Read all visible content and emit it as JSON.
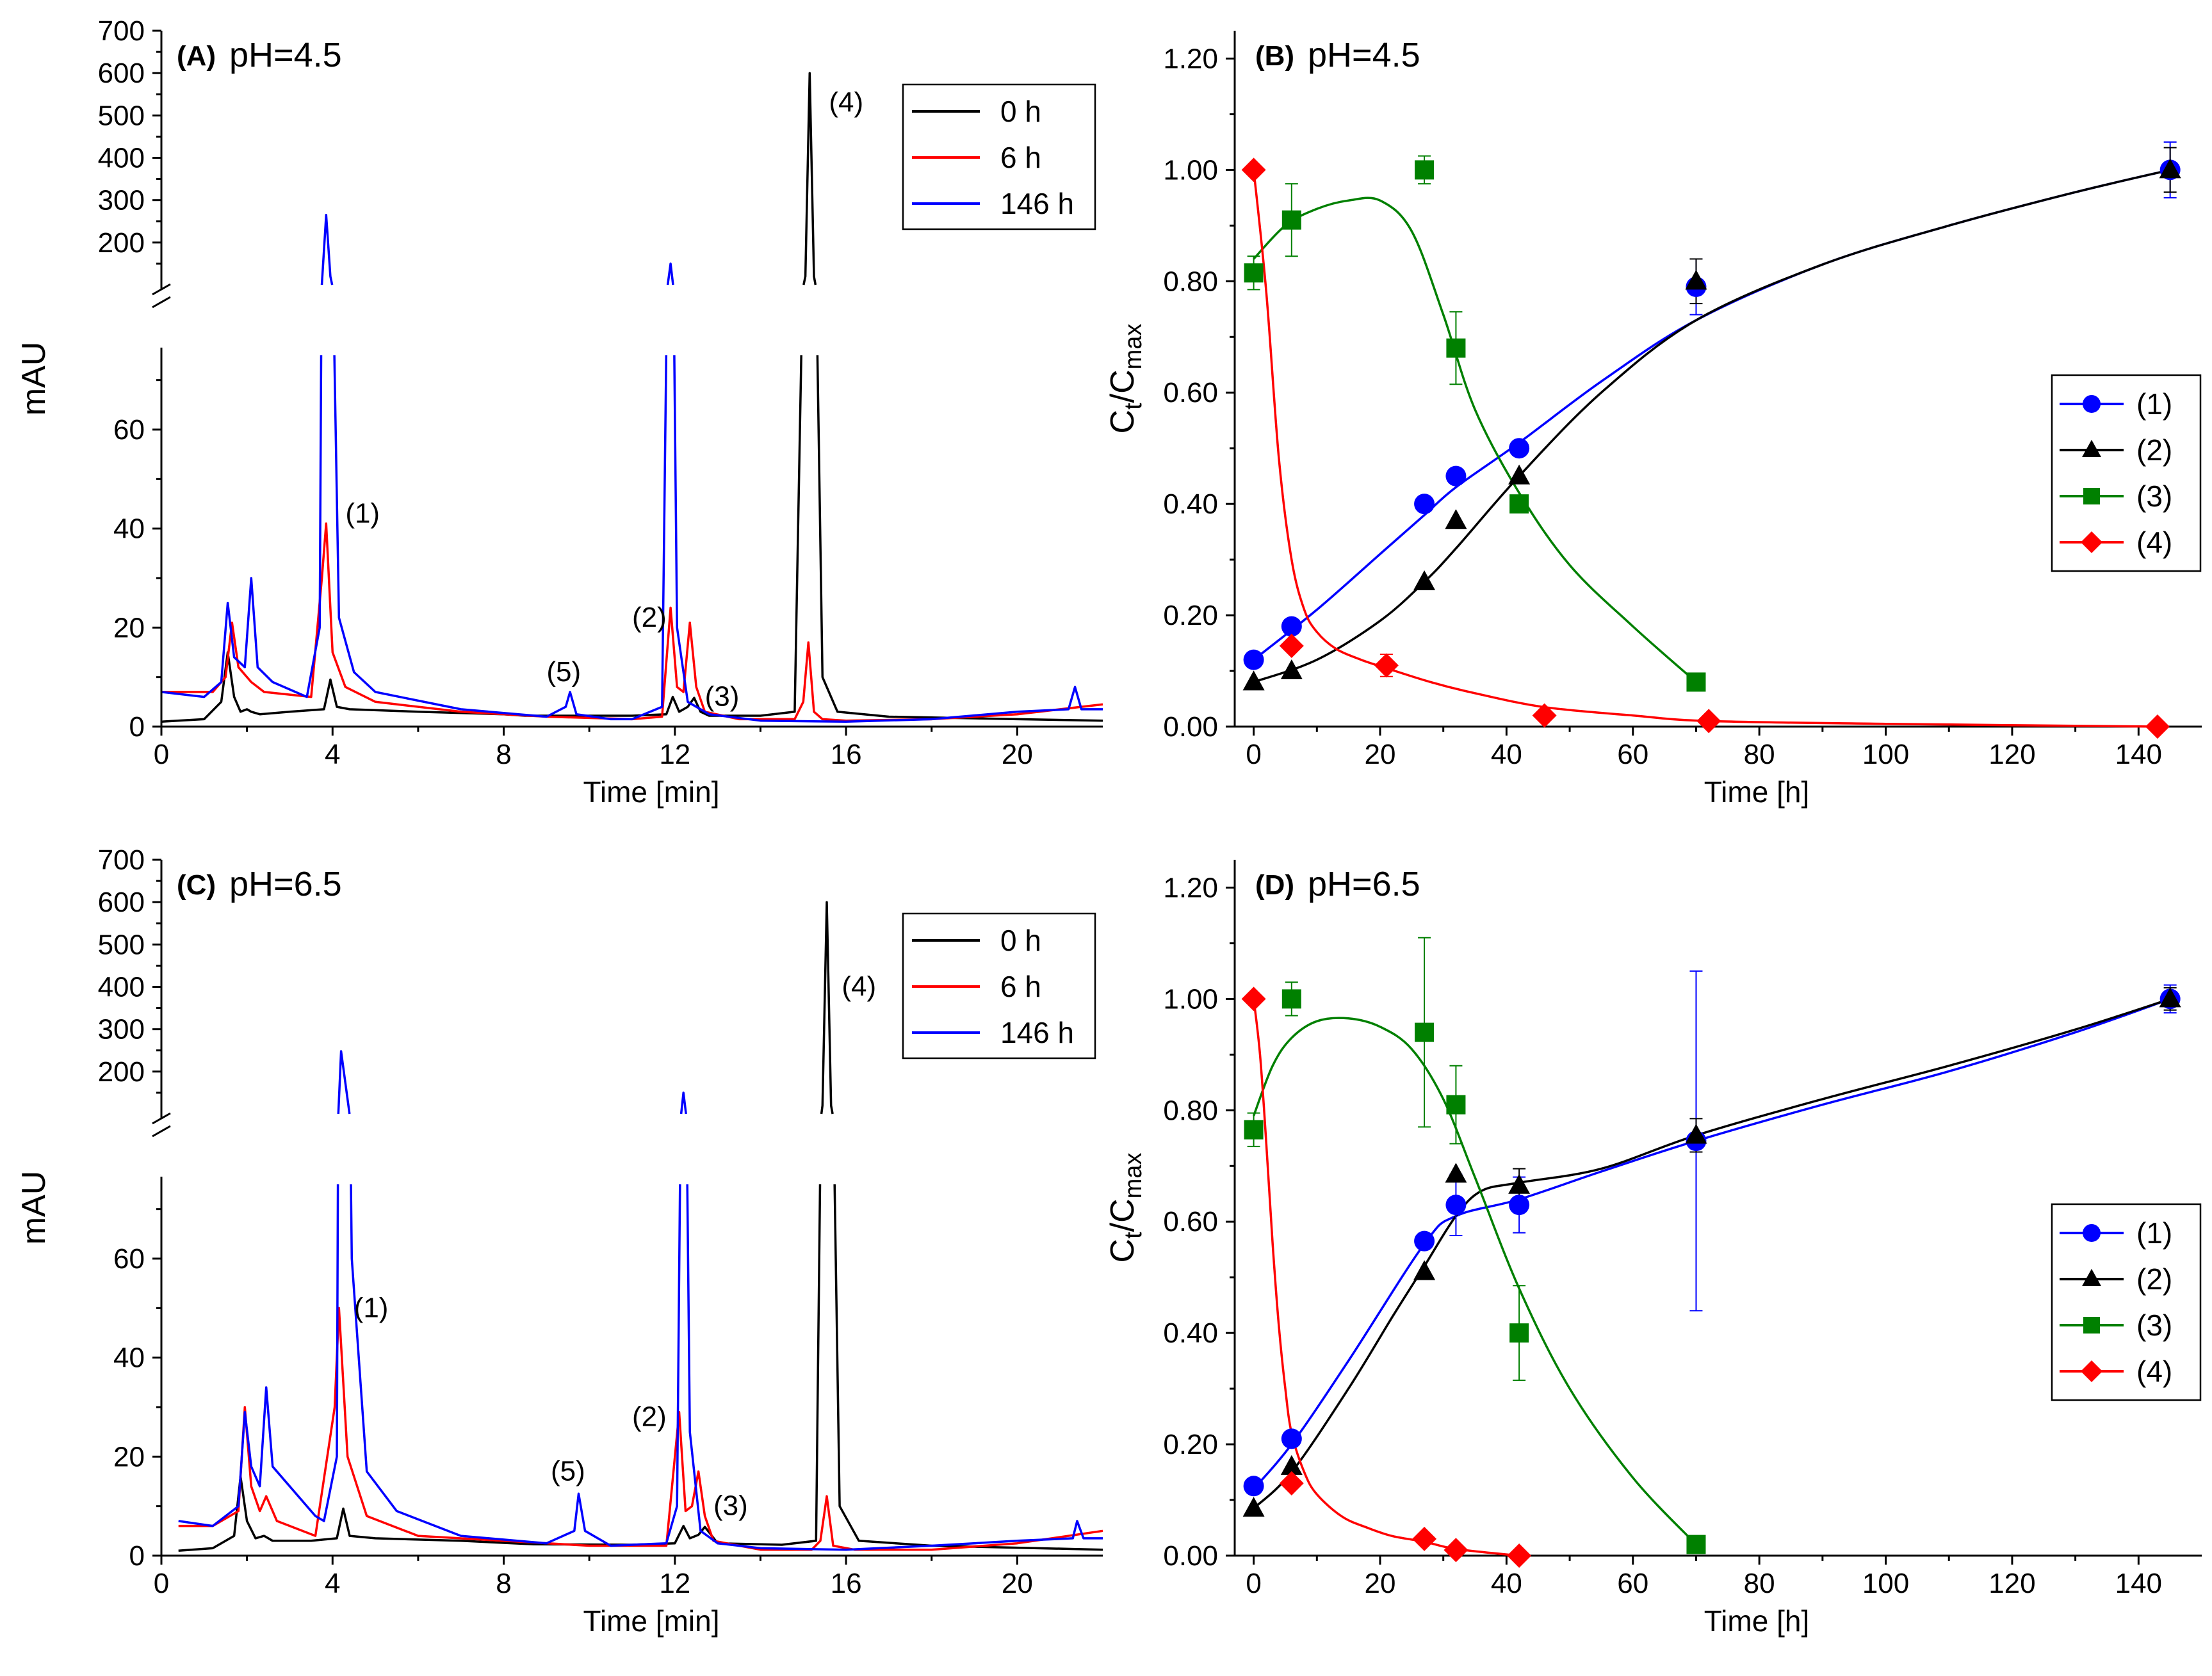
{
  "chart_data": [
    {
      "panel": "A",
      "type": "line",
      "tag": "(A)",
      "subtitle": "pH=4.5",
      "xlabel": "Time [min]",
      "ylabel": "mAU",
      "xlim": [
        0,
        22
      ],
      "xticks": [
        0,
        4,
        8,
        12,
        16,
        20
      ],
      "ylim_lower": [
        0,
        75
      ],
      "yticks_lower": [
        0,
        20,
        40,
        60
      ],
      "ylim_upper": [
        100,
        700
      ],
      "yticks_upper": [
        200,
        300,
        400,
        500,
        600,
        700
      ],
      "legend_position": "top-right",
      "series": [
        {
          "name": "0 h",
          "color": "#000000",
          "x": [
            0,
            1.0,
            1.4,
            1.55,
            1.7,
            1.85,
            2.0,
            2.1,
            2.3,
            3.0,
            3.8,
            3.95,
            4.1,
            4.4,
            6.0,
            8.0,
            8.5,
            11.0,
            11.8,
            11.95,
            12.1,
            12.3,
            12.45,
            12.6,
            12.8,
            14.0,
            14.8,
            15.05,
            15.15,
            15.25,
            15.45,
            15.8,
            17.0,
            20.0,
            22.0
          ],
          "y": [
            1,
            1.5,
            5,
            15,
            6,
            3,
            3.5,
            3,
            2.5,
            3,
            3.5,
            9.5,
            4,
            3.5,
            3,
            2.5,
            2.2,
            2.2,
            2.5,
            6,
            3,
            4,
            5.8,
            3,
            2.2,
            2.2,
            3,
            120,
            600,
            120,
            10,
            3,
            2,
            1.5,
            1.2
          ]
        },
        {
          "name": "6 h",
          "color": "#ff0000",
          "x": [
            0,
            1.2,
            1.5,
            1.65,
            1.8,
            2.1,
            2.4,
            3.5,
            3.75,
            3.85,
            4.0,
            4.3,
            5.0,
            7.0,
            9.0,
            11.0,
            11.7,
            11.9,
            12.05,
            12.2,
            12.35,
            12.5,
            12.7,
            13.5,
            14.8,
            15.0,
            15.12,
            15.25,
            15.45,
            16.0,
            18.0,
            20.0,
            22.0
          ],
          "y": [
            7,
            7,
            10,
            21,
            12,
            9,
            7,
            6,
            30,
            41,
            15,
            8,
            5,
            3,
            2,
            1.5,
            2,
            24,
            8,
            7,
            21,
            8,
            3,
            1.5,
            1.5,
            5,
            17,
            3,
            1.5,
            1.2,
            1.5,
            2.5,
            4.5
          ]
        },
        {
          "name": "146 h",
          "color": "#0000ff",
          "x": [
            0,
            1.0,
            1.4,
            1.55,
            1.7,
            1.95,
            2.1,
            2.25,
            2.6,
            3.4,
            3.7,
            3.85,
            3.95,
            4.15,
            4.5,
            5.0,
            7.0,
            9.0,
            9.45,
            9.55,
            9.7,
            10.5,
            11.0,
            11.7,
            11.9,
            12.05,
            12.3,
            12.8,
            14.0,
            16.0,
            18.0,
            20.0,
            21.2,
            21.35,
            21.5,
            22.0
          ],
          "y": [
            7,
            6,
            9,
            25,
            14,
            12,
            30,
            12,
            9,
            6,
            20,
            265,
            120,
            22,
            11,
            7,
            3.5,
            2,
            4,
            7,
            2.5,
            1.5,
            1.5,
            4,
            150,
            20,
            5,
            2.5,
            1.2,
            1.0,
            1.5,
            3,
            3.5,
            8,
            3.5,
            3.5
          ]
        }
      ],
      "annotations": [
        {
          "text": "(1)",
          "x": 4.3,
          "y": 43
        },
        {
          "text": "(2)",
          "x": 11.0,
          "y": 22
        },
        {
          "text": "(3)",
          "x": 12.7,
          "y": 6
        },
        {
          "text": "(4)",
          "x": 15.6,
          "y": 530
        },
        {
          "text": "(5)",
          "x": 9.0,
          "y": 11
        }
      ]
    },
    {
      "panel": "B",
      "type": "scatter",
      "tag": "(B)",
      "subtitle": "pH=4.5",
      "xlabel": "Time [h]",
      "ylabel": "Ct/Cmax",
      "xlim": [
        -3,
        150
      ],
      "xticks": [
        0,
        20,
        40,
        60,
        80,
        100,
        120,
        140
      ],
      "ylim": [
        0,
        1.25
      ],
      "yticks": [
        0.0,
        0.2,
        0.4,
        0.6,
        0.8,
        1.0,
        1.2
      ],
      "legend_position": "right",
      "series": [
        {
          "name": "(1)",
          "color": "#0000ff",
          "marker": "circle",
          "x": [
            0,
            6,
            27,
            32,
            42,
            70,
            145
          ],
          "y": [
            0.12,
            0.18,
            0.4,
            0.45,
            0.5,
            0.79,
            1.0
          ],
          "err": [
            0,
            0,
            0,
            0,
            0,
            0.05,
            0.05
          ],
          "fit_x": [
            0,
            10,
            20,
            27,
            32,
            42,
            55,
            70,
            90,
            110,
            130,
            145
          ],
          "fit_y": [
            0.12,
            0.21,
            0.31,
            0.38,
            0.43,
            0.51,
            0.62,
            0.73,
            0.83,
            0.9,
            0.96,
            1.0
          ]
        },
        {
          "name": "(2)",
          "color": "#000000",
          "marker": "triangle",
          "x": [
            0,
            6,
            27,
            32,
            42,
            70,
            145
          ],
          "y": [
            0.08,
            0.1,
            0.26,
            0.37,
            0.45,
            0.8,
            1.0
          ],
          "err": [
            0,
            0,
            0,
            0,
            0,
            0.04,
            0.04
          ],
          "fit_x": [
            0,
            10,
            20,
            27,
            32,
            42,
            55,
            70,
            90,
            110,
            130,
            145
          ],
          "fit_y": [
            0.08,
            0.12,
            0.19,
            0.26,
            0.32,
            0.45,
            0.6,
            0.73,
            0.83,
            0.9,
            0.96,
            1.0
          ]
        },
        {
          "name": "(3)",
          "color": "#008000",
          "marker": "square",
          "x": [
            0,
            6,
            27,
            32,
            42,
            70
          ],
          "y": [
            0.815,
            0.91,
            1.0,
            0.68,
            0.4,
            0.08
          ],
          "err": [
            0.03,
            0.065,
            0.025,
            0.065,
            0,
            0
          ],
          "fit_x": [
            0,
            5,
            10,
            15,
            20,
            25,
            30,
            35,
            42,
            50,
            60,
            70
          ],
          "fit_y": [
            0.84,
            0.9,
            0.93,
            0.945,
            0.945,
            0.89,
            0.74,
            0.57,
            0.42,
            0.29,
            0.18,
            0.08
          ]
        },
        {
          "name": "(4)",
          "color": "#ff0000",
          "marker": "diamond",
          "x": [
            0,
            6,
            21,
            46,
            72,
            143
          ],
          "y": [
            1.0,
            0.145,
            0.11,
            0.02,
            0.01,
            0.0
          ],
          "err": [
            0,
            0,
            0.02,
            0,
            0,
            0
          ],
          "fit_x": [
            0,
            2,
            4,
            6,
            8,
            10,
            13,
            17,
            21,
            28,
            35,
            46,
            60,
            72,
            100,
            143
          ],
          "fit_y": [
            1.0,
            0.78,
            0.48,
            0.3,
            0.21,
            0.17,
            0.14,
            0.12,
            0.105,
            0.08,
            0.06,
            0.035,
            0.02,
            0.01,
            0.005,
            0.0
          ]
        }
      ]
    },
    {
      "panel": "C",
      "type": "line",
      "tag": "(C)",
      "subtitle": "pH=6.5",
      "xlabel": "Time [min]",
      "ylabel": "mAU",
      "xlim": [
        0,
        22
      ],
      "xticks": [
        0,
        4,
        8,
        12,
        16,
        20
      ],
      "ylim_lower": [
        0,
        75
      ],
      "yticks_lower": [
        0,
        20,
        40,
        60
      ],
      "ylim_upper": [
        100,
        700
      ],
      "yticks_upper": [
        200,
        300,
        400,
        500,
        600,
        700
      ],
      "legend_position": "top-right",
      "series": [
        {
          "name": "0 h",
          "color": "#000000",
          "x": [
            0.4,
            1.2,
            1.7,
            1.85,
            2.0,
            2.2,
            2.4,
            2.6,
            3.5,
            4.1,
            4.25,
            4.4,
            5.0,
            7.0,
            8.7,
            11.0,
            12.0,
            12.2,
            12.35,
            12.55,
            12.7,
            13.0,
            14.5,
            15.3,
            15.45,
            15.55,
            15.65,
            15.85,
            16.3,
            18.0,
            22.0
          ],
          "y": [
            1,
            1.5,
            4,
            16,
            7,
            3.5,
            4,
            3,
            3,
            3.5,
            9.5,
            4,
            3.5,
            3,
            2.3,
            2.2,
            2.5,
            6,
            3.5,
            4.2,
            5.8,
            2.5,
            2.2,
            3,
            120,
            600,
            120,
            10,
            3,
            2,
            1.2
          ]
        },
        {
          "name": "6 h",
          "color": "#ff0000",
          "x": [
            0.4,
            1.2,
            1.8,
            1.95,
            2.1,
            2.3,
            2.45,
            2.7,
            3.6,
            4.05,
            4.15,
            4.35,
            4.8,
            6.0,
            8.0,
            10.0,
            11.8,
            12.1,
            12.25,
            12.4,
            12.55,
            12.7,
            12.9,
            14.0,
            15.2,
            15.4,
            15.55,
            15.7,
            16.2,
            18.0,
            20.0,
            22.0
          ],
          "y": [
            6,
            6,
            9,
            30,
            14,
            9,
            12,
            7,
            4,
            30,
            50,
            20,
            8,
            4,
            3,
            2,
            2,
            29,
            9,
            10,
            17,
            8,
            3,
            1.2,
            1.2,
            3,
            12,
            2,
            1.2,
            1.2,
            2.5,
            5
          ]
        },
        {
          "name": "146 h",
          "color": "#0000ff",
          "x": [
            0.4,
            1.2,
            1.8,
            1.95,
            2.1,
            2.3,
            2.45,
            2.6,
            3.6,
            3.8,
            4.1,
            4.2,
            4.45,
            4.8,
            5.5,
            7.0,
            9.0,
            9.65,
            9.75,
            9.9,
            10.5,
            11.8,
            12.05,
            12.2,
            12.35,
            12.6,
            13.0,
            14.0,
            16.0,
            18.0,
            20.0,
            21.3,
            21.4,
            21.55,
            22.0
          ],
          "y": [
            7,
            6,
            10,
            29,
            18,
            14,
            34,
            18,
            8,
            7,
            20,
            248,
            60,
            17,
            9,
            4,
            2.5,
            5,
            12.5,
            5,
            2,
            2.5,
            10,
            150,
            25,
            5,
            2.5,
            1.5,
            1.2,
            2,
            3,
            3.5,
            7,
            3.5,
            3.5
          ]
        }
      ],
      "annotations": [
        {
          "text": "(1)",
          "x": 4.5,
          "y": 50
        },
        {
          "text": "(2)",
          "x": 11.0,
          "y": 28
        },
        {
          "text": "(3)",
          "x": 12.9,
          "y": 10
        },
        {
          "text": "(4)",
          "x": 15.9,
          "y": 400
        },
        {
          "text": "(5)",
          "x": 9.1,
          "y": 17
        }
      ]
    },
    {
      "panel": "D",
      "type": "scatter",
      "tag": "(D)",
      "subtitle": "pH=6.5",
      "xlabel": "Time [h]",
      "ylabel": "Ct/Cmax",
      "xlim": [
        -3,
        150
      ],
      "xticks": [
        0,
        20,
        40,
        60,
        80,
        100,
        120,
        140
      ],
      "ylim": [
        0,
        1.25
      ],
      "yticks": [
        0.0,
        0.2,
        0.4,
        0.6,
        0.8,
        1.0,
        1.2
      ],
      "legend_position": "right",
      "series": [
        {
          "name": "(1)",
          "color": "#0000ff",
          "marker": "circle",
          "x": [
            0,
            6,
            27,
            32,
            42,
            70,
            145
          ],
          "y": [
            0.125,
            0.21,
            0.565,
            0.63,
            0.63,
            0.745,
            1.0
          ],
          "err": [
            0,
            0,
            0,
            0.055,
            0.05,
            0.305,
            0.025
          ],
          "fit_x": [
            0,
            6,
            15,
            27,
            32,
            42,
            55,
            70,
            90,
            110,
            130,
            145
          ],
          "fit_y": [
            0.12,
            0.2,
            0.35,
            0.56,
            0.61,
            0.64,
            0.69,
            0.745,
            0.81,
            0.87,
            0.94,
            1.0
          ]
        },
        {
          "name": "(2)",
          "color": "#000000",
          "marker": "triangle",
          "x": [
            0,
            6,
            27,
            32,
            42,
            70,
            145
          ],
          "y": [
            0.085,
            0.16,
            0.51,
            0.685,
            0.665,
            0.755,
            1.0
          ],
          "err": [
            0,
            0,
            0,
            0,
            0.03,
            0.03,
            0.02
          ],
          "fit_x": [
            0,
            6,
            15,
            22,
            27,
            32,
            36,
            42,
            55,
            70,
            90,
            110,
            130,
            145
          ],
          "fit_y": [
            0.085,
            0.15,
            0.3,
            0.43,
            0.52,
            0.61,
            0.655,
            0.67,
            0.695,
            0.755,
            0.82,
            0.88,
            0.945,
            1.0
          ]
        },
        {
          "name": "(3)",
          "color": "#008000",
          "marker": "square",
          "x": [
            0,
            6,
            27,
            32,
            42,
            70
          ],
          "y": [
            0.765,
            1.0,
            0.94,
            0.81,
            0.4,
            0.02
          ],
          "err": [
            0.03,
            0.03,
            0.17,
            0.07,
            0.085,
            0
          ],
          "fit_x": [
            0,
            3,
            6,
            10,
            15,
            20,
            25,
            30,
            35,
            42,
            50,
            60,
            70
          ],
          "fit_y": [
            0.79,
            0.88,
            0.93,
            0.96,
            0.965,
            0.95,
            0.91,
            0.82,
            0.68,
            0.48,
            0.3,
            0.14,
            0.02
          ]
        },
        {
          "name": "(4)",
          "color": "#ff0000",
          "marker": "diamond",
          "x": [
            0,
            6,
            27,
            32,
            42
          ],
          "y": [
            1.0,
            0.13,
            0.03,
            0.01,
            0.0
          ],
          "err": [
            0,
            0,
            0,
            0,
            0
          ],
          "fit_x": [
            0,
            1,
            2,
            3,
            4,
            5,
            6,
            8,
            10,
            14,
            18,
            22,
            27,
            32,
            42
          ],
          "fit_y": [
            1.0,
            0.9,
            0.74,
            0.56,
            0.41,
            0.3,
            0.22,
            0.15,
            0.11,
            0.07,
            0.05,
            0.035,
            0.025,
            0.012,
            0.0
          ]
        }
      ]
    }
  ]
}
